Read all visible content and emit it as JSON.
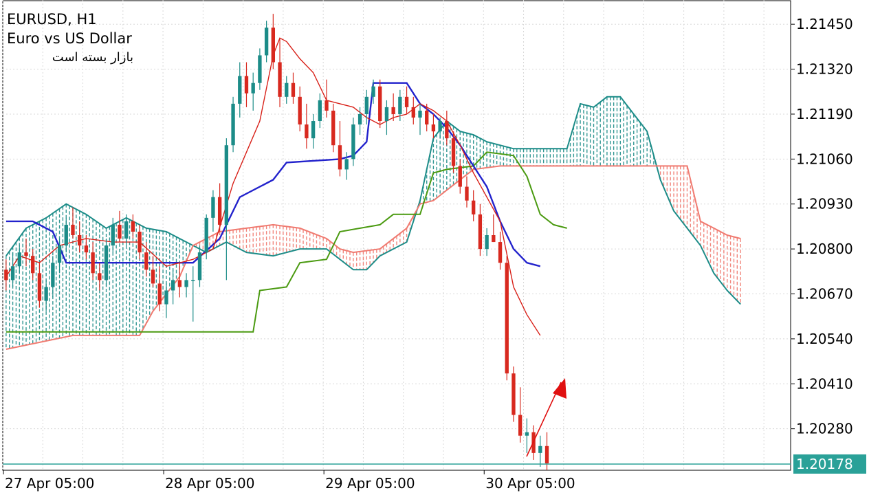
{
  "header": {
    "symbol_timeframe": "EURUSD, H1",
    "description": "Euro vs US Dollar",
    "market_status": "بازار بسته است"
  },
  "colors": {
    "bull": "#1c8c88",
    "bear": "#d8291f",
    "tenkan": "#d82018",
    "kijun": "#2222cc",
    "chikou": "#4a9a10",
    "span_a_cloud": "#1c8c88",
    "span_b_cloud": "#f07a70",
    "grid": "#d8d8d8",
    "price_line": "#2aa198",
    "arrow": "#e01010"
  },
  "chart_data": {
    "type": "candlestick",
    "symbol": "EURUSD",
    "timeframe": "H1",
    "indicator": "Ichimoku Kinko Hyo",
    "current_price": "1.20178",
    "y_ticks": [
      "1.21450",
      "1.21320",
      "1.21190",
      "1.21060",
      "1.20930",
      "1.20800",
      "1.20670",
      "1.20540",
      "1.20410",
      "1.20280"
    ],
    "ylim": [
      1.2016,
      1.2152
    ],
    "x_ticks": [
      {
        "label": "27 Apr 05:00",
        "bar": 0
      },
      {
        "label": "28 Apr 05:00",
        "bar": 24
      },
      {
        "label": "29 Apr 05:00",
        "bar": 48
      },
      {
        "label": "30 Apr 05:00",
        "bar": 72
      }
    ],
    "bar_count": 92,
    "candles": [
      [
        1.2074,
        1.2077,
        1.2068,
        1.2071
      ],
      [
        1.2071,
        1.2079,
        1.2069,
        1.2075
      ],
      [
        1.2075,
        1.2081,
        1.2073,
        1.2079
      ],
      [
        1.2079,
        1.2083,
        1.2075,
        1.2078
      ],
      [
        1.2078,
        1.208,
        1.2071,
        1.2073
      ],
      [
        1.2073,
        1.2076,
        1.2063,
        1.2065
      ],
      [
        1.2065,
        1.2071,
        1.2062,
        1.2069
      ],
      [
        1.2069,
        1.2078,
        1.2066,
        1.2076
      ],
      [
        1.2076,
        1.2083,
        1.2073,
        1.2081
      ],
      [
        1.2081,
        1.2089,
        1.2079,
        1.2087
      ],
      [
        1.2087,
        1.2092,
        1.2083,
        1.2084
      ],
      [
        1.2084,
        1.2088,
        1.2079,
        1.2081
      ],
      [
        1.2081,
        1.2084,
        1.2077,
        1.2079
      ],
      [
        1.2079,
        1.2082,
        1.2071,
        1.2073
      ],
      [
        1.2073,
        1.2076,
        1.2068,
        1.2071
      ],
      [
        1.2071,
        1.2083,
        1.2069,
        1.2081
      ],
      [
        1.2081,
        1.2089,
        1.2079,
        1.2087
      ],
      [
        1.2087,
        1.2091,
        1.2082,
        1.2083
      ],
      [
        1.2083,
        1.209,
        1.2081,
        1.2088
      ],
      [
        1.2088,
        1.209,
        1.2083,
        1.2085
      ],
      [
        1.2085,
        1.2087,
        1.2077,
        1.2079
      ],
      [
        1.2079,
        1.2082,
        1.2072,
        1.2074
      ],
      [
        1.2074,
        1.2078,
        1.2069,
        1.207
      ],
      [
        1.207,
        1.2075,
        1.2062,
        1.2064
      ],
      [
        1.2064,
        1.207,
        1.206,
        1.2068
      ],
      [
        1.2068,
        1.2074,
        1.2064,
        1.2071
      ],
      [
        1.2071,
        1.2076,
        1.2066,
        1.2069
      ],
      [
        1.2069,
        1.2073,
        1.2066,
        1.2071
      ],
      [
        1.2071,
        1.2075,
        1.2059,
        1.2071
      ],
      [
        1.2071,
        1.2081,
        1.2069,
        1.2079
      ],
      [
        1.2079,
        1.209,
        1.2077,
        1.2089
      ],
      [
        1.2089,
        1.2097,
        1.2085,
        1.2095
      ],
      [
        1.2095,
        1.2099,
        1.2085,
        1.2087
      ],
      [
        1.2087,
        1.2112,
        1.2071,
        1.211
      ],
      [
        1.211,
        1.2124,
        1.2108,
        1.2122
      ],
      [
        1.2122,
        1.2134,
        1.2118,
        1.213
      ],
      [
        1.213,
        1.2134,
        1.2121,
        1.2125
      ],
      [
        1.2125,
        1.2131,
        1.212,
        1.2128
      ],
      [
        1.2128,
        1.2138,
        1.2126,
        1.2136
      ],
      [
        1.2136,
        1.2146,
        1.2134,
        1.2144
      ],
      [
        1.2144,
        1.2148,
        1.2132,
        1.2134
      ],
      [
        1.2134,
        1.2141,
        1.2121,
        1.2124
      ],
      [
        1.2124,
        1.213,
        1.2122,
        1.2128
      ],
      [
        1.2128,
        1.2131,
        1.2122,
        1.2124
      ],
      [
        1.2124,
        1.2127,
        1.2114,
        1.2116
      ],
      [
        1.2116,
        1.2122,
        1.2109,
        1.2112
      ],
      [
        1.2112,
        1.2119,
        1.2109,
        1.2117
      ],
      [
        1.2117,
        1.2125,
        1.2115,
        1.2123
      ],
      [
        1.2123,
        1.2129,
        1.2118,
        1.212
      ],
      [
        1.212,
        1.2122,
        1.2108,
        1.211
      ],
      [
        1.211,
        1.2117,
        1.2101,
        1.2103
      ],
      [
        1.2103,
        1.2108,
        1.21,
        1.2106
      ],
      [
        1.2106,
        1.2118,
        1.2104,
        1.2116
      ],
      [
        1.2116,
        1.2121,
        1.2113,
        1.2119
      ],
      [
        1.2119,
        1.2126,
        1.2116,
        1.2124
      ],
      [
        1.2124,
        1.2129,
        1.2122,
        1.2127
      ],
      [
        1.2127,
        1.2129,
        1.2115,
        1.2117
      ],
      [
        1.2117,
        1.2123,
        1.2113,
        1.2121
      ],
      [
        1.2121,
        1.2125,
        1.2117,
        1.2119
      ],
      [
        1.2119,
        1.2126,
        1.2117,
        1.2124
      ],
      [
        1.2124,
        1.2127,
        1.2119,
        1.2121
      ],
      [
        1.2121,
        1.2124,
        1.2116,
        1.2118
      ],
      [
        1.2118,
        1.2122,
        1.2113,
        1.212
      ],
      [
        1.212,
        1.2122,
        1.2114,
        1.2116
      ],
      [
        1.2116,
        1.2119,
        1.2112,
        1.2114
      ],
      [
        1.2114,
        1.2118,
        1.2112,
        1.2117
      ],
      [
        1.2117,
        1.212,
        1.211,
        1.2112
      ],
      [
        1.2112,
        1.2114,
        1.2102,
        1.2104
      ],
      [
        1.2104,
        1.2106,
        1.2096,
        1.2098
      ],
      [
        1.2098,
        1.2101,
        1.2092,
        1.2094
      ],
      [
        1.2094,
        1.2097,
        1.2088,
        1.209
      ],
      [
        1.209,
        1.2093,
        1.2078,
        1.208
      ],
      [
        1.208,
        1.2086,
        1.2078,
        1.2084
      ],
      [
        1.2084,
        1.209,
        1.2082,
        1.2082
      ],
      [
        1.2082,
        1.2085,
        1.2074,
        1.2076
      ],
      [
        1.2076,
        1.2078,
        1.2042,
        1.2044
      ],
      [
        1.2044,
        1.2046,
        1.203,
        1.2032
      ],
      [
        1.2032,
        1.204,
        1.2024,
        1.2026
      ],
      [
        1.2026,
        1.2031,
        1.2021,
        1.2027
      ],
      [
        1.2027,
        1.2029,
        1.2019,
        1.2021
      ],
      [
        1.2021,
        1.2026,
        1.2017,
        1.2023
      ],
      [
        1.2023,
        1.2027,
        1.2016,
        1.2018
      ]
    ],
    "tenkan_sen": [
      [
        0,
        1.2072
      ],
      [
        2,
        1.2078
      ],
      [
        5,
        1.2076
      ],
      [
        8,
        1.2081
      ],
      [
        12,
        1.2083
      ],
      [
        16,
        1.2082
      ],
      [
        20,
        1.2082
      ],
      [
        24,
        1.2075
      ],
      [
        28,
        1.2077
      ],
      [
        31,
        1.208
      ],
      [
        34,
        1.2099
      ],
      [
        36,
        1.2108
      ],
      [
        38,
        1.2117
      ],
      [
        40,
        1.2136
      ],
      [
        41,
        1.2141
      ],
      [
        42,
        1.214
      ],
      [
        44,
        1.2135
      ],
      [
        46,
        1.2131
      ],
      [
        48,
        1.2123
      ],
      [
        50,
        1.2122
      ],
      [
        52,
        1.2121
      ],
      [
        54,
        1.2118
      ],
      [
        56,
        1.2116
      ],
      [
        58,
        1.2118
      ],
      [
        60,
        1.2119
      ],
      [
        62,
        1.2122
      ],
      [
        64,
        1.212
      ],
      [
        66,
        1.2117
      ],
      [
        68,
        1.211
      ],
      [
        70,
        1.2102
      ],
      [
        72,
        1.2095
      ],
      [
        74,
        1.2088
      ],
      [
        76,
        1.2069
      ],
      [
        78,
        1.2061
      ],
      [
        80,
        1.2055
      ]
    ],
    "kijun_sen": [
      [
        0,
        1.2088
      ],
      [
        4,
        1.2088
      ],
      [
        7,
        1.2085
      ],
      [
        9,
        1.2076
      ],
      [
        12,
        1.2076
      ],
      [
        16,
        1.2076
      ],
      [
        20,
        1.2076
      ],
      [
        28,
        1.2076
      ],
      [
        32,
        1.2083
      ],
      [
        35,
        1.2095
      ],
      [
        40,
        1.21
      ],
      [
        42,
        1.2105
      ],
      [
        50,
        1.2106
      ],
      [
        52,
        1.2107
      ],
      [
        54,
        1.2111
      ],
      [
        55,
        1.2128
      ],
      [
        60,
        1.2128
      ],
      [
        62,
        1.2122
      ],
      [
        64,
        1.2119
      ],
      [
        66,
        1.2115
      ],
      [
        68,
        1.211
      ],
      [
        70,
        1.2104
      ],
      [
        72,
        1.2098
      ],
      [
        74,
        1.2088
      ],
      [
        76,
        1.208
      ],
      [
        78,
        1.2076
      ],
      [
        80,
        1.2075
      ]
    ],
    "chikou_span": [
      [
        0,
        1.2056
      ],
      [
        20,
        1.2056
      ],
      [
        37,
        1.2056
      ],
      [
        38,
        1.2068
      ],
      [
        42,
        1.2069
      ],
      [
        44,
        1.2076
      ],
      [
        48,
        1.2077
      ],
      [
        50,
        1.2085
      ],
      [
        56,
        1.2087
      ],
      [
        58,
        1.209
      ],
      [
        62,
        1.209
      ],
      [
        64,
        1.2102
      ],
      [
        66,
        1.2103
      ],
      [
        70,
        1.2104
      ],
      [
        72,
        1.2108
      ],
      [
        76,
        1.2107
      ],
      [
        78,
        1.2101
      ],
      [
        80,
        1.209
      ],
      [
        82,
        1.2087
      ],
      [
        84,
        1.2086
      ]
    ],
    "senkou_span_a": [
      [
        0,
        1.2078
      ],
      [
        3,
        1.2086
      ],
      [
        6,
        1.2089
      ],
      [
        9,
        1.2093
      ],
      [
        12,
        1.209
      ],
      [
        15,
        1.2086
      ],
      [
        18,
        1.2089
      ],
      [
        21,
        1.2086
      ],
      [
        24,
        1.2085
      ],
      [
        27,
        1.2082
      ],
      [
        30,
        1.2079
      ],
      [
        33,
        1.2082
      ],
      [
        36,
        1.2079
      ],
      [
        40,
        1.2078
      ],
      [
        44,
        1.208
      ],
      [
        48,
        1.208
      ],
      [
        50,
        1.2077
      ],
      [
        52,
        1.2074
      ],
      [
        54,
        1.2074
      ],
      [
        56,
        1.2078
      ],
      [
        58,
        1.208
      ],
      [
        60,
        1.2082
      ],
      [
        62,
        1.2094
      ],
      [
        64,
        1.2112
      ],
      [
        66,
        1.2117
      ],
      [
        68,
        1.2114
      ],
      [
        70,
        1.2113
      ],
      [
        72,
        1.2111
      ],
      [
        76,
        1.2109
      ],
      [
        80,
        1.2109
      ],
      [
        84,
        1.2109
      ],
      [
        86,
        1.2122
      ],
      [
        88,
        1.2121
      ],
      [
        90,
        1.2124
      ],
      [
        92,
        1.2124
      ],
      [
        94,
        1.2119
      ],
      [
        96,
        1.2114
      ],
      [
        98,
        1.21
      ],
      [
        100,
        1.2091
      ],
      [
        102,
        1.2086
      ],
      [
        104,
        1.2081
      ],
      [
        106,
        1.2073
      ],
      [
        108,
        1.2068
      ],
      [
        110,
        1.2064
      ]
    ],
    "senkou_span_b": [
      [
        0,
        1.2051
      ],
      [
        10,
        1.2055
      ],
      [
        20,
        1.2055
      ],
      [
        22,
        1.2062
      ],
      [
        26,
        1.2072
      ],
      [
        28,
        1.2081
      ],
      [
        32,
        1.2085
      ],
      [
        36,
        1.2086
      ],
      [
        40,
        1.2087
      ],
      [
        44,
        1.2086
      ],
      [
        48,
        1.2083
      ],
      [
        50,
        1.208
      ],
      [
        52,
        1.2079
      ],
      [
        56,
        1.208
      ],
      [
        60,
        1.2086
      ],
      [
        62,
        1.2093
      ],
      [
        64,
        1.2094
      ],
      [
        66,
        1.2097
      ],
      [
        70,
        1.2103
      ],
      [
        74,
        1.2104
      ],
      [
        78,
        1.2104
      ],
      [
        86,
        1.2104
      ],
      [
        98,
        1.2104
      ],
      [
        100,
        1.2104
      ],
      [
        102,
        1.2104
      ],
      [
        104,
        1.2088
      ],
      [
        106,
        1.2086
      ],
      [
        108,
        1.2084
      ],
      [
        110,
        1.2083
      ]
    ],
    "annotation": "upward arrow"
  }
}
